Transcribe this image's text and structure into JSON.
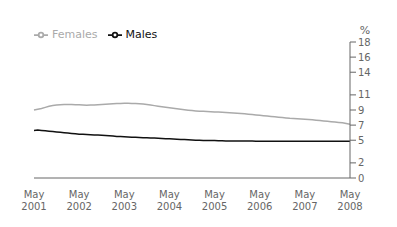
{
  "chart_data": {
    "type": "line",
    "ylabel": "%",
    "ylim": [
      0,
      18
    ],
    "yticks": [
      0,
      2,
      5,
      7,
      9,
      11,
      14,
      16,
      18
    ],
    "legend": "upper left",
    "grid": false,
    "categories": [
      "May\n2001",
      null,
      null,
      null,
      null,
      null,
      null,
      null,
      null,
      null,
      null,
      null,
      "May\n2002",
      null,
      null,
      null,
      null,
      null,
      null,
      null,
      null,
      null,
      null,
      null,
      "May\n2003",
      null,
      null,
      null,
      null,
      null,
      null,
      null,
      null,
      null,
      null,
      null,
      "May\n2004",
      null,
      null,
      null,
      null,
      null,
      null,
      null,
      null,
      null,
      null,
      null,
      "May\n2005",
      null,
      null,
      null,
      null,
      null,
      null,
      null,
      null,
      null,
      null,
      null,
      "May\n2006",
      null,
      null,
      null,
      null,
      null,
      null,
      null,
      null,
      null,
      null,
      null,
      "May\n2007",
      null,
      null,
      null,
      null,
      null,
      null,
      null,
      null,
      null,
      null,
      null,
      "May\n2008"
    ],
    "series": [
      {
        "name": "Males",
        "color": "#111111",
        "values": [
          6.3,
          6.35,
          6.3,
          6.25,
          6.2,
          6.15,
          6.1,
          6.05,
          6.0,
          5.95,
          5.9,
          5.85,
          5.8,
          5.78,
          5.75,
          5.72,
          5.7,
          5.68,
          5.65,
          5.62,
          5.6,
          5.55,
          5.5,
          5.48,
          5.45,
          5.43,
          5.4,
          5.38,
          5.35,
          5.33,
          5.32,
          5.3,
          5.28,
          5.25,
          5.22,
          5.2,
          5.18,
          5.15,
          5.13,
          5.1,
          5.08,
          5.05,
          5.03,
          5.0,
          4.98,
          4.97,
          4.95,
          4.95,
          4.95,
          4.93,
          4.92,
          4.9,
          4.9,
          4.9,
          4.9,
          4.9,
          4.9,
          4.9,
          4.9,
          4.88,
          4.87,
          4.87,
          4.87,
          4.87,
          4.87,
          4.87,
          4.87,
          4.87,
          4.87,
          4.87,
          4.87,
          4.87,
          4.87,
          4.87,
          4.87,
          4.87,
          4.87,
          4.87,
          4.87,
          4.87,
          4.87,
          4.87,
          4.87,
          4.87,
          4.87
        ]
      },
      {
        "name": "Females",
        "color": "#aaaaaa",
        "values": [
          9.0,
          9.1,
          9.2,
          9.35,
          9.5,
          9.6,
          9.65,
          9.7,
          9.72,
          9.73,
          9.72,
          9.7,
          9.68,
          9.65,
          9.63,
          9.65,
          9.67,
          9.7,
          9.73,
          9.75,
          9.78,
          9.82,
          9.85,
          9.87,
          9.88,
          9.88,
          9.87,
          9.85,
          9.82,
          9.78,
          9.72,
          9.65,
          9.58,
          9.5,
          9.43,
          9.37,
          9.3,
          9.23,
          9.17,
          9.1,
          9.03,
          8.97,
          8.92,
          8.88,
          8.85,
          8.82,
          8.8,
          8.78,
          8.75,
          8.73,
          8.7,
          8.67,
          8.63,
          8.6,
          8.57,
          8.53,
          8.5,
          8.45,
          8.4,
          8.35,
          8.3,
          8.25,
          8.2,
          8.15,
          8.1,
          8.05,
          8.0,
          7.95,
          7.9,
          7.87,
          7.83,
          7.8,
          7.77,
          7.73,
          7.7,
          7.65,
          7.6,
          7.55,
          7.5,
          7.45,
          7.4,
          7.35,
          7.3,
          7.2,
          7.1
        ]
      }
    ]
  }
}
